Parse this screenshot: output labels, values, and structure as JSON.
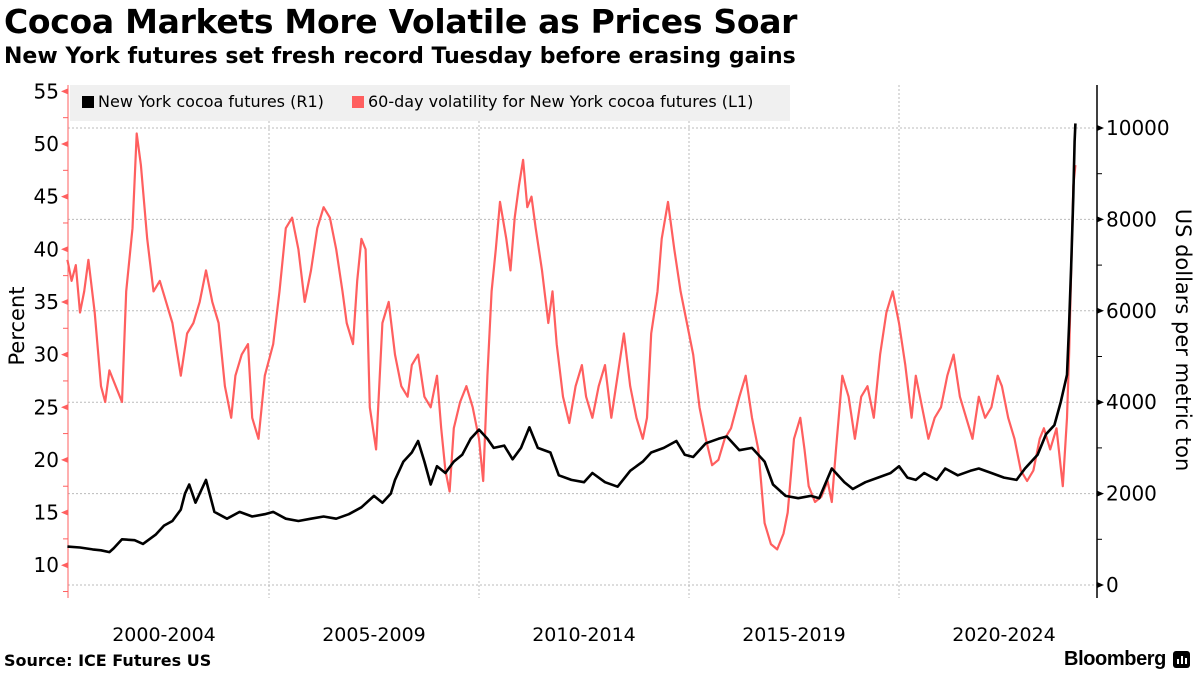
{
  "header": {
    "title": "Cocoa Markets More Volatile as Prices Soar",
    "subtitle": "New York futures set fresh record Tuesday before erasing gains"
  },
  "footer": {
    "source": "Source: ICE Futures US",
    "brand": "Bloomberg",
    "brand_icon": "bloomberg-terminal-icon"
  },
  "colors": {
    "price": "#000000",
    "volatility": "#ff5f5f",
    "grid": "#bbbbbb",
    "legend_bg": "#f0f0f0"
  },
  "chart_data": {
    "type": "line",
    "title": "Cocoa Markets More Volatile as Prices Soar",
    "subtitle": "New York futures set fresh record Tuesday before erasing gains",
    "x_axis": {
      "ticks": [
        {
          "label": "2000-2004",
          "start": 2000,
          "end": 2005
        },
        {
          "label": "2005-2009",
          "start": 2005,
          "end": 2010
        },
        {
          "label": "2010-2014",
          "start": 2010,
          "end": 2015
        },
        {
          "label": "2015-2019",
          "start": 2015,
          "end": 2020
        },
        {
          "label": "2020-2024",
          "start": 2020,
          "end": 2025
        }
      ],
      "range": [
        2000.2,
        2024.4
      ]
    },
    "y_left": {
      "label": "Percent",
      "ticks": [
        10,
        15,
        20,
        25,
        30,
        35,
        40,
        45,
        50,
        55
      ],
      "range": [
        7.5,
        55
      ]
    },
    "y_right": {
      "label": "US dollars per metric ton",
      "ticks": [
        0,
        2000,
        4000,
        6000,
        8000,
        10000
      ],
      "range": [
        -100,
        11000
      ]
    },
    "grid": true,
    "legend": {
      "placement": "top-left",
      "entries": [
        {
          "label": "New York cocoa futures (R1)",
          "series": "price"
        },
        {
          "label": "60-day volatility for New York cocoa futures (L1)",
          "series": "volatility"
        }
      ]
    },
    "series": [
      {
        "name": "New York cocoa futures (R1)",
        "axis": "right",
        "color": "#000000",
        "points": [
          [
            2000.2,
            840
          ],
          [
            2000.5,
            820
          ],
          [
            2000.8,
            780
          ],
          [
            2001.0,
            760
          ],
          [
            2001.2,
            720
          ],
          [
            2001.3,
            800
          ],
          [
            2001.5,
            1000
          ],
          [
            2001.8,
            980
          ],
          [
            2002.0,
            900
          ],
          [
            2002.3,
            1100
          ],
          [
            2002.5,
            1300
          ],
          [
            2002.7,
            1400
          ],
          [
            2002.9,
            1650
          ],
          [
            2003.0,
            2000
          ],
          [
            2003.1,
            2200
          ],
          [
            2003.25,
            1800
          ],
          [
            2003.4,
            2100
          ],
          [
            2003.5,
            2300
          ],
          [
            2003.7,
            1600
          ],
          [
            2004.0,
            1450
          ],
          [
            2004.3,
            1600
          ],
          [
            2004.6,
            1500
          ],
          [
            2004.9,
            1550
          ],
          [
            2005.1,
            1600
          ],
          [
            2005.4,
            1450
          ],
          [
            2005.7,
            1400
          ],
          [
            2006.0,
            1450
          ],
          [
            2006.3,
            1500
          ],
          [
            2006.6,
            1450
          ],
          [
            2006.9,
            1550
          ],
          [
            2007.2,
            1700
          ],
          [
            2007.5,
            1950
          ],
          [
            2007.7,
            1800
          ],
          [
            2007.9,
            2000
          ],
          [
            2008.0,
            2300
          ],
          [
            2008.2,
            2700
          ],
          [
            2008.4,
            2900
          ],
          [
            2008.55,
            3150
          ],
          [
            2008.7,
            2700
          ],
          [
            2008.85,
            2200
          ],
          [
            2009.0,
            2600
          ],
          [
            2009.2,
            2450
          ],
          [
            2009.4,
            2700
          ],
          [
            2009.6,
            2850
          ],
          [
            2009.8,
            3200
          ],
          [
            2010.0,
            3400
          ],
          [
            2010.2,
            3200
          ],
          [
            2010.35,
            3000
          ],
          [
            2010.6,
            3050
          ],
          [
            2010.8,
            2750
          ],
          [
            2011.0,
            3000
          ],
          [
            2011.2,
            3450
          ],
          [
            2011.4,
            3000
          ],
          [
            2011.7,
            2900
          ],
          [
            2011.9,
            2400
          ],
          [
            2012.2,
            2300
          ],
          [
            2012.5,
            2250
          ],
          [
            2012.7,
            2450
          ],
          [
            2013.0,
            2250
          ],
          [
            2013.3,
            2150
          ],
          [
            2013.6,
            2500
          ],
          [
            2013.9,
            2700
          ],
          [
            2014.1,
            2900
          ],
          [
            2014.4,
            3000
          ],
          [
            2014.7,
            3150
          ],
          [
            2014.9,
            2850
          ],
          [
            2015.1,
            2800
          ],
          [
            2015.4,
            3100
          ],
          [
            2015.7,
            3200
          ],
          [
            2015.9,
            3250
          ],
          [
            2016.2,
            2950
          ],
          [
            2016.5,
            3000
          ],
          [
            2016.8,
            2700
          ],
          [
            2017.0,
            2200
          ],
          [
            2017.3,
            1950
          ],
          [
            2017.6,
            1900
          ],
          [
            2017.9,
            1950
          ],
          [
            2018.1,
            1900
          ],
          [
            2018.4,
            2550
          ],
          [
            2018.7,
            2250
          ],
          [
            2018.9,
            2100
          ],
          [
            2019.2,
            2250
          ],
          [
            2019.5,
            2350
          ],
          [
            2019.8,
            2450
          ],
          [
            2020.0,
            2600
          ],
          [
            2020.2,
            2350
          ],
          [
            2020.4,
            2300
          ],
          [
            2020.6,
            2450
          ],
          [
            2020.9,
            2300
          ],
          [
            2021.1,
            2550
          ],
          [
            2021.4,
            2400
          ],
          [
            2021.7,
            2500
          ],
          [
            2021.9,
            2550
          ],
          [
            2022.2,
            2450
          ],
          [
            2022.5,
            2350
          ],
          [
            2022.8,
            2300
          ],
          [
            2023.0,
            2550
          ],
          [
            2023.3,
            2850
          ],
          [
            2023.5,
            3300
          ],
          [
            2023.7,
            3500
          ],
          [
            2023.85,
            4000
          ],
          [
            2024.0,
            4600
          ],
          [
            2024.05,
            5700
          ],
          [
            2024.1,
            7000
          ],
          [
            2024.15,
            8500
          ],
          [
            2024.18,
            9700
          ],
          [
            2024.2,
            10100
          ]
        ]
      },
      {
        "name": "60-day volatility for New York cocoa futures (L1)",
        "axis": "left",
        "color": "#ff5f5f",
        "points": [
          [
            2000.2,
            39
          ],
          [
            2000.3,
            37
          ],
          [
            2000.4,
            38.5
          ],
          [
            2000.5,
            34
          ],
          [
            2000.6,
            36
          ],
          [
            2000.7,
            39
          ],
          [
            2000.85,
            34
          ],
          [
            2001.0,
            27
          ],
          [
            2001.1,
            25.5
          ],
          [
            2001.2,
            28.5
          ],
          [
            2001.35,
            27
          ],
          [
            2001.5,
            25.5
          ],
          [
            2001.6,
            36
          ],
          [
            2001.75,
            42
          ],
          [
            2001.85,
            51
          ],
          [
            2001.95,
            48
          ],
          [
            2002.1,
            41
          ],
          [
            2002.25,
            36
          ],
          [
            2002.4,
            37
          ],
          [
            2002.55,
            35
          ],
          [
            2002.7,
            33
          ],
          [
            2002.9,
            28
          ],
          [
            2003.05,
            32
          ],
          [
            2003.2,
            33
          ],
          [
            2003.35,
            35
          ],
          [
            2003.5,
            38
          ],
          [
            2003.65,
            35
          ],
          [
            2003.8,
            33
          ],
          [
            2003.95,
            27
          ],
          [
            2004.1,
            24
          ],
          [
            2004.2,
            28
          ],
          [
            2004.35,
            30
          ],
          [
            2004.5,
            31
          ],
          [
            2004.6,
            24
          ],
          [
            2004.75,
            22
          ],
          [
            2004.9,
            28
          ],
          [
            2005.1,
            31
          ],
          [
            2005.25,
            36
          ],
          [
            2005.4,
            42
          ],
          [
            2005.55,
            43
          ],
          [
            2005.7,
            40
          ],
          [
            2005.85,
            35
          ],
          [
            2006.0,
            38
          ],
          [
            2006.15,
            42
          ],
          [
            2006.3,
            44
          ],
          [
            2006.45,
            43
          ],
          [
            2006.6,
            40
          ],
          [
            2006.75,
            36
          ],
          [
            2006.85,
            33
          ],
          [
            2007.0,
            31
          ],
          [
            2007.1,
            37
          ],
          [
            2007.2,
            41
          ],
          [
            2007.3,
            40
          ],
          [
            2007.4,
            25
          ],
          [
            2007.55,
            21
          ],
          [
            2007.7,
            33
          ],
          [
            2007.85,
            35
          ],
          [
            2008.0,
            30
          ],
          [
            2008.15,
            27
          ],
          [
            2008.3,
            26
          ],
          [
            2008.4,
            29
          ],
          [
            2008.55,
            30
          ],
          [
            2008.7,
            26
          ],
          [
            2008.85,
            25
          ],
          [
            2009.0,
            28
          ],
          [
            2009.1,
            23
          ],
          [
            2009.2,
            19
          ],
          [
            2009.3,
            17
          ],
          [
            2009.4,
            23
          ],
          [
            2009.55,
            25.5
          ],
          [
            2009.7,
            27
          ],
          [
            2009.85,
            25
          ],
          [
            2010.0,
            22
          ],
          [
            2010.1,
            18
          ],
          [
            2010.2,
            28
          ],
          [
            2010.3,
            36
          ],
          [
            2010.4,
            40
          ],
          [
            2010.5,
            44.5
          ],
          [
            2010.65,
            41
          ],
          [
            2010.75,
            38
          ],
          [
            2010.85,
            43
          ],
          [
            2010.95,
            46
          ],
          [
            2011.05,
            48.5
          ],
          [
            2011.15,
            44
          ],
          [
            2011.25,
            45
          ],
          [
            2011.35,
            42
          ],
          [
            2011.5,
            38
          ],
          [
            2011.65,
            33
          ],
          [
            2011.75,
            36
          ],
          [
            2011.85,
            31
          ],
          [
            2012.0,
            26
          ],
          [
            2012.15,
            23.5
          ],
          [
            2012.3,
            27
          ],
          [
            2012.45,
            29
          ],
          [
            2012.55,
            26
          ],
          [
            2012.7,
            24
          ],
          [
            2012.85,
            27
          ],
          [
            2013.0,
            29
          ],
          [
            2013.15,
            24
          ],
          [
            2013.3,
            28
          ],
          [
            2013.45,
            32
          ],
          [
            2013.6,
            27
          ],
          [
            2013.75,
            24
          ],
          [
            2013.9,
            22
          ],
          [
            2014.0,
            24
          ],
          [
            2014.1,
            32
          ],
          [
            2014.25,
            36
          ],
          [
            2014.35,
            41
          ],
          [
            2014.5,
            44.5
          ],
          [
            2014.65,
            40
          ],
          [
            2014.8,
            36
          ],
          [
            2014.95,
            33
          ],
          [
            2015.1,
            30
          ],
          [
            2015.25,
            25
          ],
          [
            2015.4,
            22
          ],
          [
            2015.55,
            19.5
          ],
          [
            2015.7,
            20
          ],
          [
            2015.85,
            22
          ],
          [
            2016.0,
            23
          ],
          [
            2016.2,
            26
          ],
          [
            2016.35,
            28
          ],
          [
            2016.5,
            24
          ],
          [
            2016.65,
            21
          ],
          [
            2016.8,
            14
          ],
          [
            2016.95,
            12
          ],
          [
            2017.1,
            11.5
          ],
          [
            2017.25,
            13
          ],
          [
            2017.35,
            15
          ],
          [
            2017.5,
            22
          ],
          [
            2017.65,
            24
          ],
          [
            2017.75,
            21
          ],
          [
            2017.85,
            17.5
          ],
          [
            2018.0,
            16
          ],
          [
            2018.15,
            16.5
          ],
          [
            2018.3,
            18
          ],
          [
            2018.4,
            16
          ],
          [
            2018.5,
            21
          ],
          [
            2018.65,
            28
          ],
          [
            2018.8,
            26
          ],
          [
            2018.95,
            22
          ],
          [
            2019.1,
            26
          ],
          [
            2019.25,
            27
          ],
          [
            2019.4,
            24
          ],
          [
            2019.55,
            30
          ],
          [
            2019.7,
            34
          ],
          [
            2019.85,
            36
          ],
          [
            2020.0,
            33
          ],
          [
            2020.15,
            29
          ],
          [
            2020.3,
            24
          ],
          [
            2020.4,
            28
          ],
          [
            2020.55,
            25
          ],
          [
            2020.7,
            22
          ],
          [
            2020.85,
            24
          ],
          [
            2021.0,
            25
          ],
          [
            2021.15,
            28
          ],
          [
            2021.3,
            30
          ],
          [
            2021.45,
            26
          ],
          [
            2021.6,
            24
          ],
          [
            2021.75,
            22
          ],
          [
            2021.9,
            26
          ],
          [
            2022.05,
            24
          ],
          [
            2022.2,
            25
          ],
          [
            2022.35,
            28
          ],
          [
            2022.45,
            27
          ],
          [
            2022.6,
            24
          ],
          [
            2022.75,
            22
          ],
          [
            2022.9,
            19
          ],
          [
            2023.05,
            18
          ],
          [
            2023.2,
            19
          ],
          [
            2023.35,
            22
          ],
          [
            2023.45,
            23
          ],
          [
            2023.6,
            21
          ],
          [
            2023.75,
            23
          ],
          [
            2023.9,
            17.5
          ],
          [
            2024.0,
            24
          ],
          [
            2024.05,
            30
          ],
          [
            2024.1,
            38
          ],
          [
            2024.15,
            46
          ],
          [
            2024.2,
            48
          ]
        ]
      }
    ]
  }
}
